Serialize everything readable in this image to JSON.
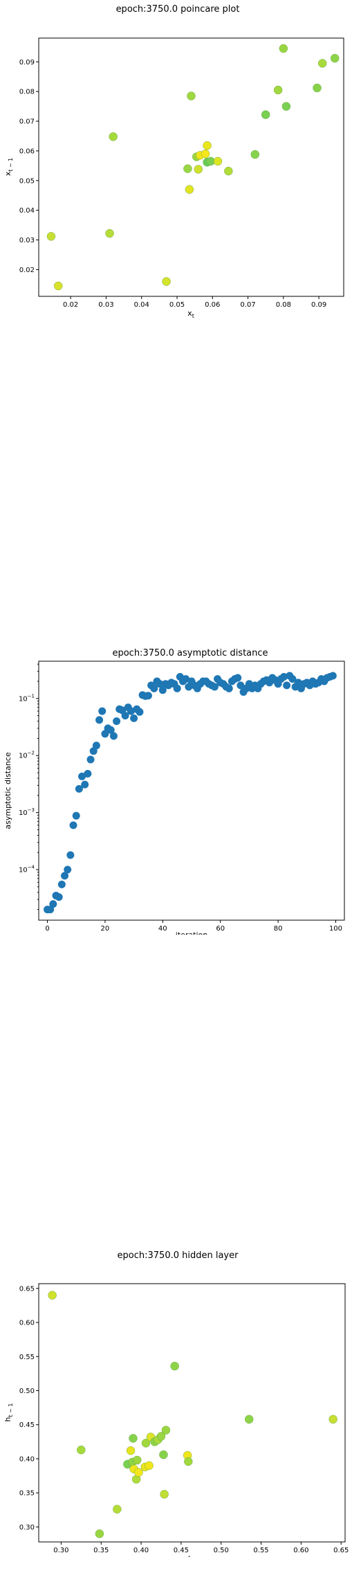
{
  "chart_data": [
    {
      "type": "scatter",
      "title": "epoch:3750.0 poincare plot",
      "xlabel_base": "x",
      "xlabel_sub": "t",
      "ylabel_base": "x",
      "ylabel_sub": "t − 1",
      "xlim": [
        0.011,
        0.097
      ],
      "ylim": [
        0.011,
        0.098
      ],
      "xticks": [
        "0.02",
        "0.03",
        "0.04",
        "0.05",
        "0.06",
        "0.07",
        "0.08",
        "0.09"
      ],
      "yticks": [
        "0.02",
        "0.03",
        "0.04",
        "0.05",
        "0.06",
        "0.07",
        "0.08",
        "0.09"
      ],
      "points": [
        {
          "x": 0.0145,
          "y": 0.0312,
          "color": "#c6df32"
        },
        {
          "x": 0.0165,
          "y": 0.0145,
          "color": "#d8e22a"
        },
        {
          "x": 0.031,
          "y": 0.0322,
          "color": "#b6dc38"
        },
        {
          "x": 0.032,
          "y": 0.0648,
          "color": "#a5da3c"
        },
        {
          "x": 0.047,
          "y": 0.016,
          "color": "#d4e32b"
        },
        {
          "x": 0.053,
          "y": 0.054,
          "color": "#9ad642"
        },
        {
          "x": 0.0535,
          "y": 0.047,
          "color": "#e2e51f"
        },
        {
          "x": 0.054,
          "y": 0.0785,
          "color": "#a0d840"
        },
        {
          "x": 0.0555,
          "y": 0.058,
          "color": "#9bd640"
        },
        {
          "x": 0.056,
          "y": 0.0538,
          "color": "#cfe12d"
        },
        {
          "x": 0.0565,
          "y": 0.0585,
          "color": "#f2e51a"
        },
        {
          "x": 0.058,
          "y": 0.059,
          "color": "#f6e61c"
        },
        {
          "x": 0.0585,
          "y": 0.0618,
          "color": "#ece51b"
        },
        {
          "x": 0.0585,
          "y": 0.0562,
          "color": "#6acc58"
        },
        {
          "x": 0.0595,
          "y": 0.0565,
          "color": "#7ad052"
        },
        {
          "x": 0.0615,
          "y": 0.0565,
          "color": "#dde523"
        },
        {
          "x": 0.0645,
          "y": 0.0532,
          "color": "#b2dc38"
        },
        {
          "x": 0.072,
          "y": 0.0588,
          "color": "#86d24c"
        },
        {
          "x": 0.075,
          "y": 0.0722,
          "color": "#78d050"
        },
        {
          "x": 0.0785,
          "y": 0.0805,
          "color": "#a2d83e"
        },
        {
          "x": 0.08,
          "y": 0.0945,
          "color": "#9ad642"
        },
        {
          "x": 0.0808,
          "y": 0.075,
          "color": "#7ad052"
        },
        {
          "x": 0.0895,
          "y": 0.0812,
          "color": "#88d24a"
        },
        {
          "x": 0.091,
          "y": 0.0895,
          "color": "#a8da3c"
        },
        {
          "x": 0.0945,
          "y": 0.0912,
          "color": "#8ed448"
        }
      ]
    },
    {
      "type": "scatter",
      "title": "epoch:3750.0 asymptotic distance",
      "xlabel": "iteration",
      "ylabel": "asymptotic distance",
      "yscale": "log",
      "xlim": [
        -3,
        103
      ],
      "ylim": [
        1.3e-05,
        0.45
      ],
      "xticks": [
        "0",
        "20",
        "40",
        "60",
        "80",
        "100"
      ],
      "yticks": [
        {
          "base": "10",
          "exp": "−4",
          "value": 0.0001
        },
        {
          "base": "10",
          "exp": "−3",
          "value": 0.001
        },
        {
          "base": "10",
          "exp": "−2",
          "value": 0.01
        },
        {
          "base": "10",
          "exp": "−1",
          "value": 0.1
        }
      ],
      "color": "#1f77b4",
      "x": [
        0,
        1,
        2,
        3,
        4,
        5,
        6,
        7,
        8,
        9,
        10,
        11,
        12,
        13,
        14,
        15,
        16,
        17,
        18,
        19,
        20,
        21,
        22,
        23,
        24,
        25,
        26,
        27,
        28,
        29,
        30,
        31,
        32,
        33,
        34,
        35,
        36,
        37,
        38,
        39,
        40,
        41,
        42,
        43,
        44,
        45,
        46,
        47,
        48,
        49,
        50,
        51,
        52,
        53,
        54,
        55,
        56,
        57,
        58,
        59,
        60,
        61,
        62,
        63,
        64,
        65,
        66,
        67,
        68,
        69,
        70,
        71,
        72,
        73,
        74,
        75,
        76,
        77,
        78,
        79,
        80,
        81,
        82,
        83,
        84,
        85,
        86,
        87,
        88,
        89,
        90,
        91,
        92,
        93,
        94,
        95,
        96,
        97,
        98,
        99
      ],
      "y": [
        2e-05,
        2e-05,
        2.5e-05,
        3.5e-05,
        3.3e-05,
        5.5e-05,
        7.8e-05,
        0.0001,
        0.00018,
        0.0006,
        0.00088,
        0.0026,
        0.0043,
        0.0031,
        0.0048,
        0.0085,
        0.012,
        0.015,
        0.042,
        0.06,
        0.024,
        0.03,
        0.028,
        0.022,
        0.04,
        0.065,
        0.062,
        0.05,
        0.07,
        0.06,
        0.045,
        0.065,
        0.058,
        0.115,
        0.11,
        0.112,
        0.17,
        0.15,
        0.2,
        0.18,
        0.14,
        0.18,
        0.17,
        0.19,
        0.18,
        0.15,
        0.24,
        0.2,
        0.22,
        0.16,
        0.2,
        0.17,
        0.15,
        0.18,
        0.2,
        0.2,
        0.18,
        0.17,
        0.16,
        0.22,
        0.19,
        0.18,
        0.16,
        0.15,
        0.2,
        0.22,
        0.23,
        0.17,
        0.13,
        0.15,
        0.18,
        0.15,
        0.17,
        0.15,
        0.18,
        0.2,
        0.21,
        0.19,
        0.23,
        0.21,
        0.18,
        0.22,
        0.24,
        0.17,
        0.25,
        0.22,
        0.16,
        0.19,
        0.15,
        0.18,
        0.19,
        0.17,
        0.2,
        0.18,
        0.19,
        0.22,
        0.2,
        0.23,
        0.24,
        0.25
      ]
    },
    {
      "type": "scatter",
      "title": "epoch:3750.0 hidden layer",
      "xlabel_base": "h",
      "xlabel_sub": "t",
      "ylabel_base": "h",
      "ylabel_sub": "t − 1",
      "xlim": [
        0.272,
        0.655
      ],
      "ylim": [
        0.278,
        0.657
      ],
      "xticks": [
        "0.30",
        "0.35",
        "0.40",
        "0.45",
        "0.50",
        "0.55",
        "0.60",
        "0.65"
      ],
      "yticks": [
        "0.30",
        "0.35",
        "0.40",
        "0.45",
        "0.50",
        "0.55",
        "0.60",
        "0.65"
      ],
      "points": [
        {
          "x": 0.289,
          "y": 0.64,
          "color": "#d0e22c"
        },
        {
          "x": 0.325,
          "y": 0.413,
          "color": "#a4da3c"
        },
        {
          "x": 0.348,
          "y": 0.29,
          "color": "#9ad642"
        },
        {
          "x": 0.37,
          "y": 0.326,
          "color": "#b4dc38"
        },
        {
          "x": 0.383,
          "y": 0.392,
          "color": "#7ad052"
        },
        {
          "x": 0.387,
          "y": 0.412,
          "color": "#e8e41f"
        },
        {
          "x": 0.389,
          "y": 0.395,
          "color": "#8cd448"
        },
        {
          "x": 0.39,
          "y": 0.43,
          "color": "#86d24c"
        },
        {
          "x": 0.391,
          "y": 0.385,
          "color": "#eee61c"
        },
        {
          "x": 0.394,
          "y": 0.37,
          "color": "#b0dc3a"
        },
        {
          "x": 0.395,
          "y": 0.398,
          "color": "#9cd640"
        },
        {
          "x": 0.397,
          "y": 0.38,
          "color": "#f4e61e"
        },
        {
          "x": 0.405,
          "y": 0.388,
          "color": "#e8e41f"
        },
        {
          "x": 0.406,
          "y": 0.423,
          "color": "#a2d83e"
        },
        {
          "x": 0.41,
          "y": 0.39,
          "color": "#f2e51a"
        },
        {
          "x": 0.412,
          "y": 0.432,
          "color": "#dce328"
        },
        {
          "x": 0.417,
          "y": 0.425,
          "color": "#8ed448"
        },
        {
          "x": 0.421,
          "y": 0.428,
          "color": "#a8da3c"
        },
        {
          "x": 0.425,
          "y": 0.433,
          "color": "#9ad642"
        },
        {
          "x": 0.428,
          "y": 0.406,
          "color": "#86d24c"
        },
        {
          "x": 0.429,
          "y": 0.348,
          "color": "#c0de34"
        },
        {
          "x": 0.431,
          "y": 0.442,
          "color": "#9ad642"
        },
        {
          "x": 0.442,
          "y": 0.536,
          "color": "#8ed448"
        },
        {
          "x": 0.458,
          "y": 0.405,
          "color": "#f0e51c"
        },
        {
          "x": 0.459,
          "y": 0.396,
          "color": "#a0d840"
        },
        {
          "x": 0.535,
          "y": 0.458,
          "color": "#8ed448"
        },
        {
          "x": 0.64,
          "y": 0.458,
          "color": "#c6df32"
        }
      ]
    }
  ]
}
